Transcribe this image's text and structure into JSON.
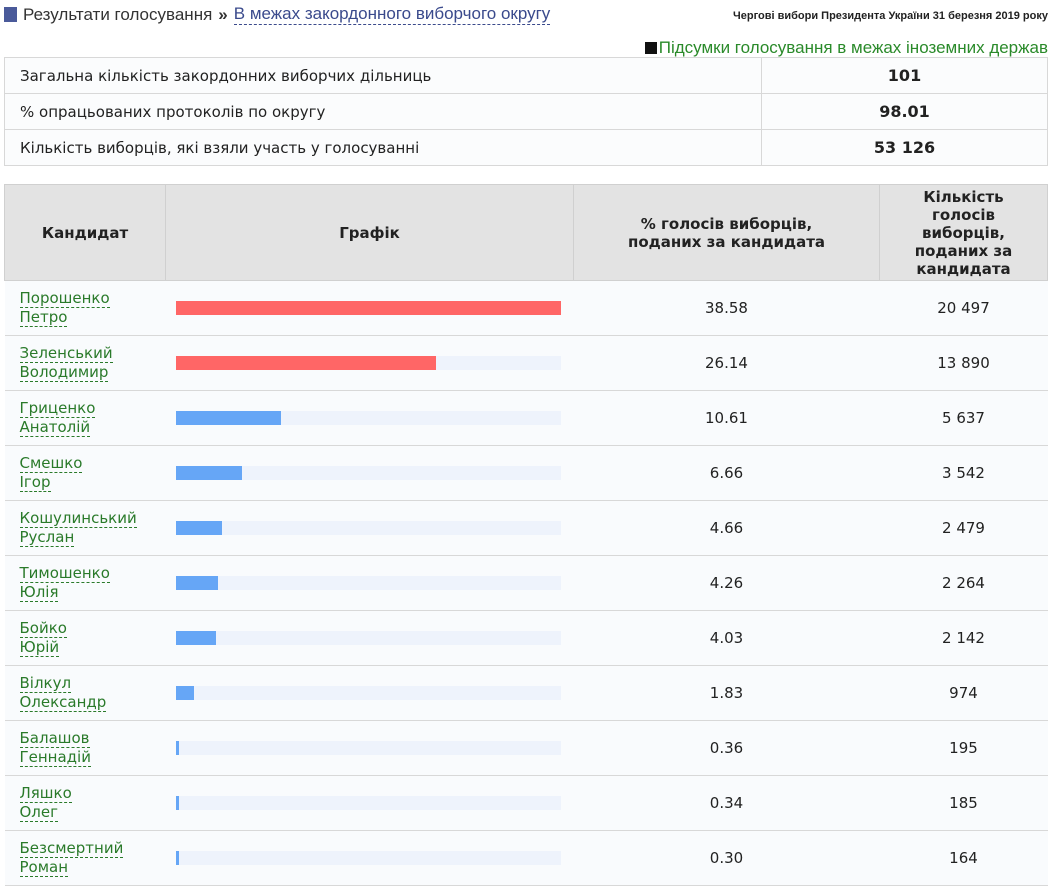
{
  "header": {
    "title": "Результати голосування",
    "crumb": "В межах закордонного виборчого округу",
    "election": "Чергові вибори Президента України 31 березня 2019 року",
    "summary_link": "Підсумки голосування в межах іноземних держав"
  },
  "stats": [
    {
      "label": "Загальна кількість закордонних виборчих дільниць",
      "value": "101"
    },
    {
      "label": "% опрацьованих протоколів по округу",
      "value": "98.01"
    },
    {
      "label": "Кількість виборців, які взяли участь у голосуванні",
      "value": "53 126"
    }
  ],
  "columns": {
    "candidate": "Кандидат",
    "chart": "Графік",
    "pct": "% голосів виборців, поданих за кандидата",
    "votes": "Кількість голосів виборців, поданих за кандидата"
  },
  "colors": {
    "leader": "#ff6666",
    "other": "#66a6f6"
  },
  "candidates": [
    {
      "surname": "Порошенко",
      "name": "Петро",
      "pct": "38.58",
      "votes": "20 497",
      "lead": true
    },
    {
      "surname": "Зеленський",
      "name": "Володимир",
      "pct": "26.14",
      "votes": "13 890",
      "lead": true
    },
    {
      "surname": "Гриценко",
      "name": "Анатолій",
      "pct": "10.61",
      "votes": "5 637"
    },
    {
      "surname": "Смешко",
      "name": "Ігор",
      "pct": "6.66",
      "votes": "3 542"
    },
    {
      "surname": "Кошулинський",
      "name": "Руслан",
      "pct": "4.66",
      "votes": "2 479"
    },
    {
      "surname": "Тимошенко",
      "name": "Юлія",
      "pct": "4.26",
      "votes": "2 264"
    },
    {
      "surname": "Бойко",
      "name": "Юрій",
      "pct": "4.03",
      "votes": "2 142"
    },
    {
      "surname": "Вілкул",
      "name": "Олександр",
      "pct": "1.83",
      "votes": "974"
    },
    {
      "surname": "Балашов",
      "name": "Геннадій",
      "pct": "0.36",
      "votes": "195"
    },
    {
      "surname": "Ляшко",
      "name": "Олег",
      "pct": "0.34",
      "votes": "185"
    },
    {
      "surname": "Безсмертний",
      "name": "Роман",
      "pct": "0.30",
      "votes": "164"
    }
  ]
}
